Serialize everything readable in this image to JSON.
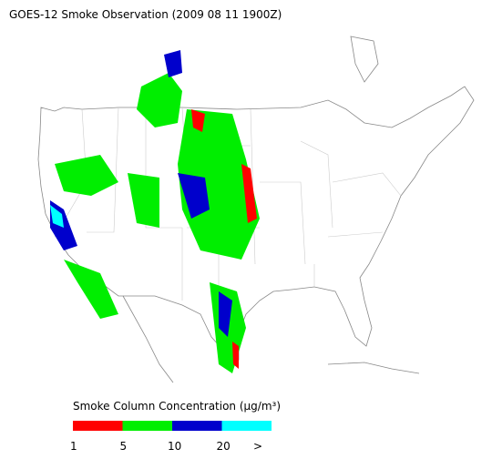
{
  "title": "GOES-12 Smoke Observation (2009 08 11  1900Z)",
  "legend": {
    "label": "Smoke Column Concentration (μg/m³)",
    "colors": [
      "#ff0000",
      "#00ee00",
      "#0000cc",
      "#00ffff"
    ],
    "ticks": [
      1,
      5,
      10,
      20,
      ">"
    ]
  }
}
